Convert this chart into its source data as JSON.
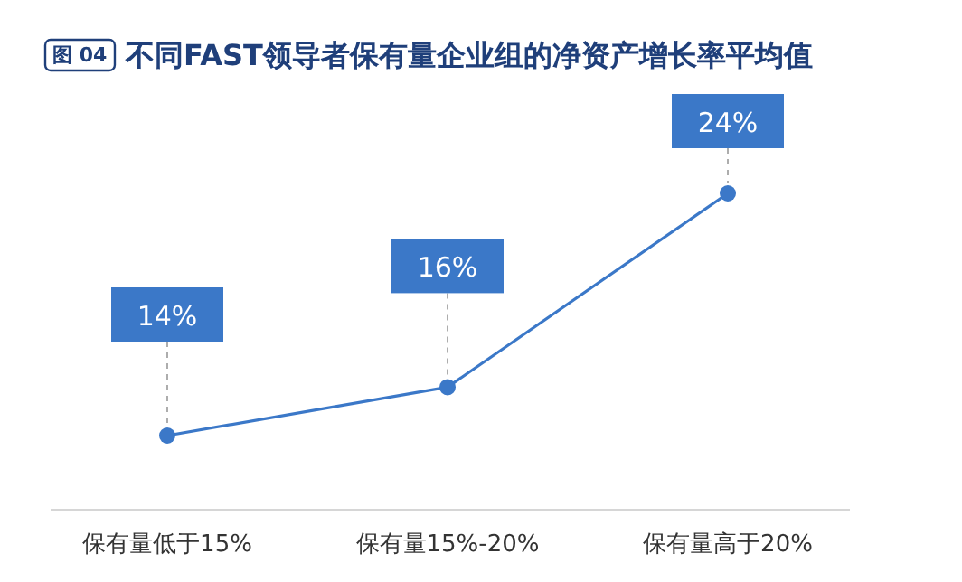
{
  "chart_data": {
    "type": "line",
    "title": "不同FAST领导者保有量企业组的净资产增长率平均值",
    "annotations": [
      "图 04"
    ],
    "categories": [
      "保有量低于15%",
      "保有量15%-20%",
      "保有量高于20%"
    ],
    "series": [
      {
        "color": "#3b78c8",
        "values": [
          14,
          16,
          24
        ],
        "value_labels": [
          "14%",
          "16%",
          "24%"
        ]
      }
    ],
    "tick_labels": "x",
    "marker": "circle",
    "line_style": "solid"
  }
}
